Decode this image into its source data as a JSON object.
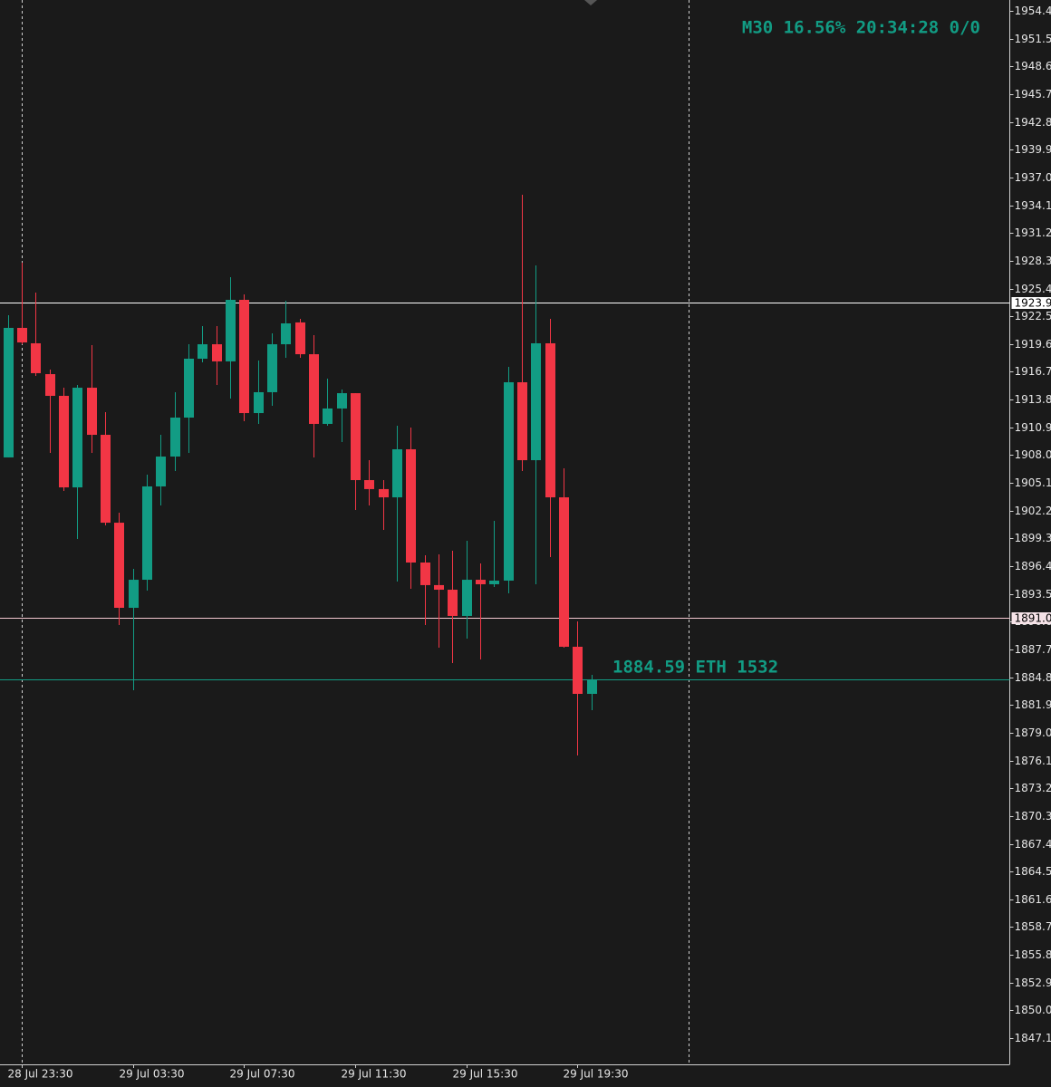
{
  "chart_data": {
    "type": "candlestick",
    "title": "M30 16.56% 20:34:28 0/0",
    "annotation": "1884.59  ETH  1532",
    "up_color": "#129c84",
    "down_color": "#f23645",
    "categories": [
      null,
      "28 Jul 23:30",
      null,
      null,
      null,
      null,
      null,
      null,
      null,
      "29 Jul 03:30",
      null,
      null,
      null,
      null,
      null,
      null,
      null,
      "29 Jul 07:30",
      null,
      null,
      null,
      null,
      null,
      null,
      null,
      "29 Jul 11:30",
      null,
      null,
      null,
      null,
      null,
      null,
      null,
      "29 Jul 15:30",
      null,
      null,
      null,
      null,
      null,
      null,
      null,
      "29 Jul 19:30",
      null
    ],
    "open": [
      1907.78,
      1921.31,
      1919.7,
      1916.48,
      1914.21,
      1904.65,
      1915.06,
      1910.14,
      1900.96,
      1892.07,
      1895.0,
      1904.75,
      1907.87,
      1911.94,
      1918.09,
      1919.6,
      1917.81,
      1924.24,
      1912.41,
      1914.59,
      1919.6,
      1921.88,
      1918.56,
      1911.28,
      1912.89,
      1914.49,
      1905.41,
      1904.47,
      1903.61,
      1908.63,
      1896.8,
      1894.44,
      1893.96,
      1891.22,
      1895.0,
      1894.53,
      1894.91,
      1915.63,
      1907.49,
      1919.7,
      1903.61,
      1888.0,
      1883.08
    ],
    "high": [
      1922.63,
      1928.12,
      1925.0,
      1916.96,
      1915.06,
      1915.35,
      1919.51,
      1912.51,
      1902.01,
      1896.14,
      1905.98,
      1910.14,
      1914.59,
      1919.6,
      1921.5,
      1921.5,
      1926.61,
      1924.81,
      1917.9,
      1920.74,
      1924.15,
      1922.25,
      1920.55,
      1916.01,
      1914.87,
      1914.49,
      1907.49,
      1905.41,
      1911.09,
      1910.9,
      1897.56,
      1897.65,
      1898.03,
      1899.07,
      1896.71,
      1901.15,
      1917.24,
      1935.22,
      1927.84,
      1922.25,
      1906.64,
      1890.65,
      1885.07
    ],
    "low": [
      1907.78,
      1919.6,
      1916.29,
      1908.25,
      1904.28,
      1899.26,
      1908.25,
      1900.68,
      1890.27,
      1883.46,
      1893.87,
      1902.76,
      1906.36,
      1908.25,
      1917.71,
      1915.35,
      1913.93,
      1911.56,
      1911.28,
      1913.17,
      1918.19,
      1918.19,
      1907.78,
      1911.09,
      1909.39,
      1902.29,
      1902.76,
      1900.21,
      1894.81,
      1894.06,
      1890.27,
      1887.91,
      1886.3,
      1888.85,
      1886.68,
      1894.25,
      1893.58,
      1906.36,
      1894.53,
      1897.37,
      1887.91,
      1876.65,
      1881.38
    ],
    "close": [
      1921.31,
      1919.79,
      1916.58,
      1914.21,
      1904.65,
      1915.06,
      1910.14,
      1900.96,
      1892.07,
      1895.0,
      1904.75,
      1907.87,
      1911.94,
      1918.09,
      1919.6,
      1917.81,
      1924.24,
      1912.41,
      1914.59,
      1919.6,
      1921.78,
      1918.56,
      1911.28,
      1912.89,
      1914.49,
      1905.41,
      1904.47,
      1903.61,
      1908.63,
      1896.8,
      1894.44,
      1893.96,
      1891.22,
      1895.0,
      1894.53,
      1894.91,
      1915.63,
      1907.49,
      1919.7,
      1903.61,
      1888.0,
      1883.08,
      1884.59
    ],
    "ylim": [
      1844.38,
      1955.56
    ],
    "yticks": [
      1954.42,
      1951.52,
      1948.62,
      1945.72,
      1942.82,
      1939.92,
      1937.02,
      1934.12,
      1931.22,
      1928.32,
      1925.42,
      1922.52,
      1919.62,
      1916.72,
      1913.82,
      1910.92,
      1908.02,
      1905.12,
      1902.22,
      1899.32,
      1896.42,
      1893.52,
      1890.62,
      1887.72,
      1884.82,
      1881.92,
      1879.02,
      1876.12,
      1873.22,
      1870.32,
      1867.42,
      1864.52,
      1861.62,
      1858.72,
      1855.82,
      1852.92,
      1850.02,
      1847.12
    ],
    "price_lines": [
      {
        "value": 1923.93,
        "color": "#ffffff"
      },
      {
        "value": 1891,
        "label": "1891.00",
        "color": "#f4c7d0"
      }
    ],
    "current_price_color": "#129c84"
  }
}
